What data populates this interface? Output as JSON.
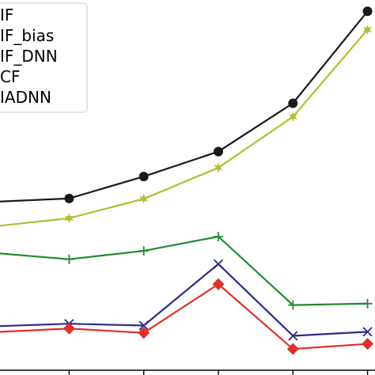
{
  "chart_data": {
    "type": "line",
    "title": "",
    "xlabel": "",
    "ylabel": "",
    "x": [
      0,
      1,
      2,
      3,
      4,
      5
    ],
    "xlim": [
      -0.5,
      5.1
    ],
    "ylim": [
      0,
      1
    ],
    "grid": false,
    "legend_placement": "top-left",
    "series": [
      {
        "name": "IF",
        "color": "#1a1a1a",
        "marker": "circle",
        "values": [
          0.46,
          0.469,
          0.529,
          0.597,
          0.729,
          0.98
        ]
      },
      {
        "name": "IF_bias",
        "color": "#b5bc2f",
        "marker": "star",
        "values": [
          0.393,
          0.415,
          0.468,
          0.553,
          0.692,
          0.93
        ]
      },
      {
        "name": "IF_DNN",
        "color": "#238a2f",
        "marker": "plus",
        "values": [
          0.32,
          0.303,
          0.326,
          0.365,
          0.178,
          0.182
        ]
      },
      {
        "name": "CF",
        "color": "#2b2a86",
        "marker": "x",
        "values": [
          0.12,
          0.127,
          0.122,
          0.29,
          0.094,
          0.105
        ]
      },
      {
        "name": "IADNN",
        "color": "#e0302a",
        "marker": "diamond",
        "values": [
          0.104,
          0.114,
          0.102,
          0.235,
          0.058,
          0.072
        ]
      }
    ],
    "legend_labels": [
      "IF",
      "IF_bias",
      "IF_DNN",
      "CF",
      "IADNN"
    ]
  }
}
